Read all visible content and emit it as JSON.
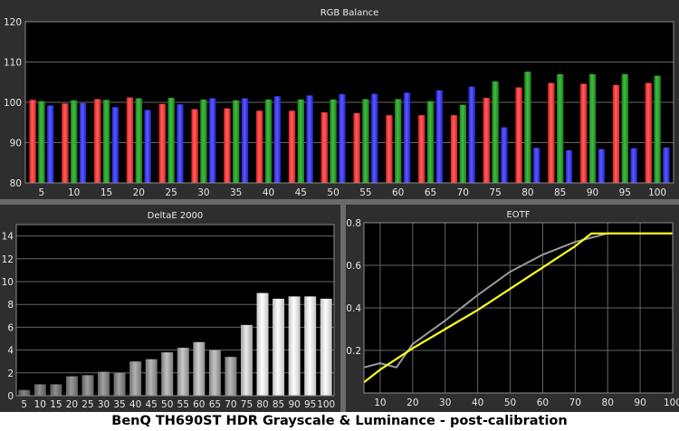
{
  "caption": "BenQ TH690ST HDR Grayscale & Luminance - post-calibration",
  "colors": {
    "red": "#ff4040",
    "green": "#2ea02e",
    "blue": "#3f3fff",
    "eotf_target": "#9a9a9a",
    "eotf_measured": "#ffff22"
  },
  "chart_data": [
    {
      "type": "bar",
      "title": "RGB Balance",
      "categories": [
        "5",
        "10",
        "15",
        "20",
        "25",
        "30",
        "35",
        "40",
        "45",
        "50",
        "55",
        "60",
        "65",
        "70",
        "75",
        "80",
        "85",
        "90",
        "95",
        "100"
      ],
      "ylim": [
        80,
        120
      ],
      "yticks": [
        80,
        90,
        100,
        110,
        120
      ],
      "grid": true,
      "series": [
        {
          "color": "red",
          "values": [
            100.6,
            99.7,
            100.8,
            101.2,
            99.6,
            98.3,
            98.5,
            97.9,
            97.9,
            97.5,
            97.3,
            96.8,
            96.8,
            96.8,
            101.1,
            103.7,
            104.8,
            104.6,
            104.3,
            104.8
          ]
        },
        {
          "color": "green",
          "values": [
            100.3,
            100.5,
            100.6,
            101.0,
            101.1,
            100.7,
            100.5,
            100.7,
            100.7,
            100.7,
            100.8,
            100.8,
            100.3,
            99.4,
            105.2,
            107.6,
            107.0,
            107.0,
            107.0,
            106.6
          ]
        },
        {
          "color": "blue",
          "values": [
            99.2,
            99.8,
            98.8,
            98.1,
            99.5,
            101.0,
            101.0,
            101.5,
            101.7,
            102.0,
            102.1,
            102.4,
            103.0,
            103.9,
            93.8,
            88.7,
            88.1,
            88.4,
            88.6,
            88.8
          ]
        }
      ]
    },
    {
      "type": "bar",
      "title": "DeltaE 2000",
      "categories": [
        "5",
        "10",
        "15",
        "20",
        "25",
        "30",
        "35",
        "40",
        "45",
        "50",
        "55",
        "60",
        "65",
        "70",
        "75",
        "80",
        "85",
        "90",
        "95",
        "100"
      ],
      "values": [
        0.5,
        1.0,
        1.0,
        1.7,
        1.8,
        2.1,
        2.0,
        3.0,
        3.2,
        3.8,
        4.2,
        4.7,
        4.0,
        3.4,
        6.2,
        9.0,
        8.5,
        8.7,
        8.7,
        8.5
      ],
      "ylim": [
        0,
        15
      ],
      "yticks": [
        0,
        2,
        4,
        6,
        8,
        10,
        12,
        14
      ],
      "grid": true
    },
    {
      "type": "line",
      "title": "EOTF",
      "xlim": [
        5,
        100
      ],
      "ylim": [
        0,
        0.8
      ],
      "xticks": [
        10,
        20,
        30,
        40,
        50,
        60,
        70,
        80,
        90,
        100
      ],
      "yticks": [
        0.2,
        0.4,
        0.6,
        0.8
      ],
      "grid": true,
      "series": [
        {
          "color": "eotf_target",
          "x": [
            5,
            10,
            15,
            20,
            30,
            40,
            50,
            60,
            65,
            70,
            75,
            80,
            90,
            100
          ],
          "y": [
            0.12,
            0.14,
            0.12,
            0.23,
            0.34,
            0.46,
            0.57,
            0.65,
            0.68,
            0.71,
            0.73,
            0.75,
            0.75,
            0.75
          ]
        },
        {
          "color": "eotf_measured",
          "x": [
            5,
            10,
            20,
            30,
            40,
            50,
            60,
            70,
            75,
            80,
            90,
            100
          ],
          "y": [
            0.05,
            0.11,
            0.21,
            0.3,
            0.39,
            0.49,
            0.59,
            0.69,
            0.75,
            0.75,
            0.75,
            0.75
          ]
        }
      ]
    }
  ]
}
